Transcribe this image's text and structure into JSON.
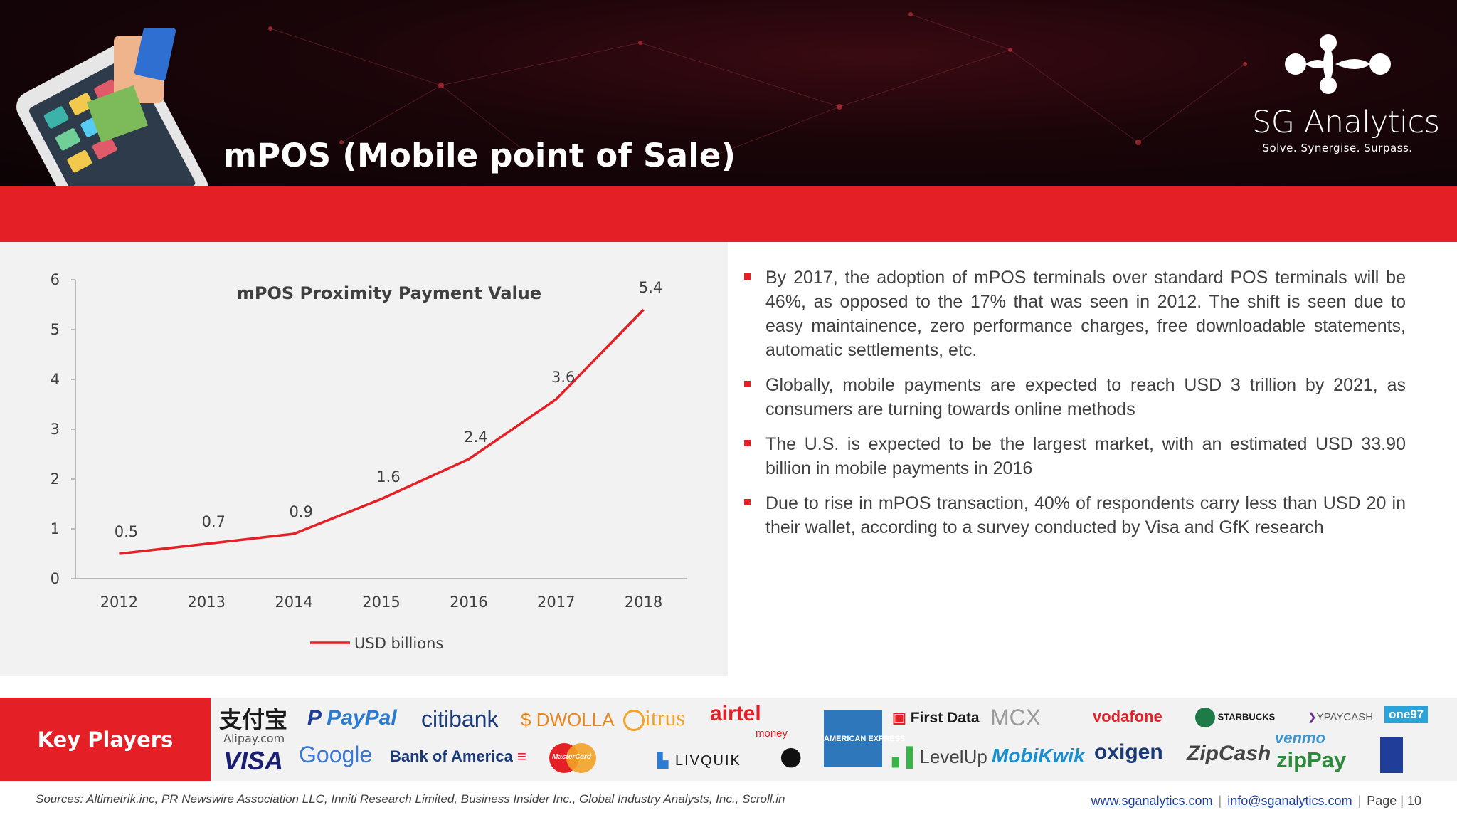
{
  "header": {
    "title": "mPOS (Mobile point of Sale)",
    "logo_name": "SG Analytics",
    "logo_tagline": "Solve. Synergise. Surpass.",
    "accent_color": "#e51f26"
  },
  "chart_data": {
    "type": "line",
    "title": "mPOS Proximity Payment Value",
    "categories": [
      "2012",
      "2013",
      "2014",
      "2015",
      "2016",
      "2017",
      "2018"
    ],
    "series": [
      {
        "name": "USD billions",
        "values": [
          0.5,
          0.7,
          0.9,
          1.6,
          2.4,
          3.6,
          5.4
        ],
        "color": "#e51f26"
      }
    ],
    "yticks": [
      "0",
      "1",
      "2",
      "3",
      "4",
      "5",
      "6"
    ],
    "ylim": [
      0,
      6
    ],
    "grid": false,
    "legend": "bottom"
  },
  "bullets": [
    "By 2017, the adoption of mPOS terminals over standard POS terminals will be 46%, as opposed to the 17% that was seen in 2012. The shift is seen due to easy maintainence, zero performance charges, free downloadable statements, automatic settlements, etc.",
    "Globally, mobile payments are expected to reach USD 3 trillion by 2021, as consumers are turning towards online methods",
    "The U.S. is expected to be the largest market, with an estimated USD 33.90 billion in mobile payments in 2016",
    "Due to rise in mPOS transaction, 40% of respondents carry less than USD 20 in their wallet, according to a survey conducted by Visa and GfK research"
  ],
  "key_players": {
    "label": "Key Players",
    "logos": {
      "alipay_cn": "支付宝",
      "alipay": "Alipay.com",
      "paypal": "PayPal",
      "citibank": "citibank",
      "dwolla": "DWOLLA",
      "citrus": "itrus",
      "airtel": "airtel",
      "airtel_sub": "money",
      "visa": "VISA",
      "google": "Google",
      "bofa": "Bank of America",
      "mastercard": "MasterCard",
      "livquik": "LIVQUIK",
      "amex": "AMERICAN EXPRESS",
      "firstdata": "First Data",
      "mcx": "MCX",
      "levelup": "LevelUp",
      "mobikwik": "MobiKwik",
      "vodafone": "vodafone",
      "oxigen": "oxigen",
      "starbucks": "STARBUCKS",
      "zipcash": "ZipCash",
      "ypaycash": "YPAYCASH",
      "venmo": "venmo",
      "zippay": "zipPay",
      "one97": "one97"
    }
  },
  "footer": {
    "sources": "Sources: Altimetrik.inc, PR Newswire Association LLC, Inniti Research Limited, Business Insider Inc., Global Industry Analysts, Inc., Scroll.in",
    "website": "www.sganalytics.com",
    "email": "info@sganalytics.com",
    "page": "Page | 10"
  }
}
